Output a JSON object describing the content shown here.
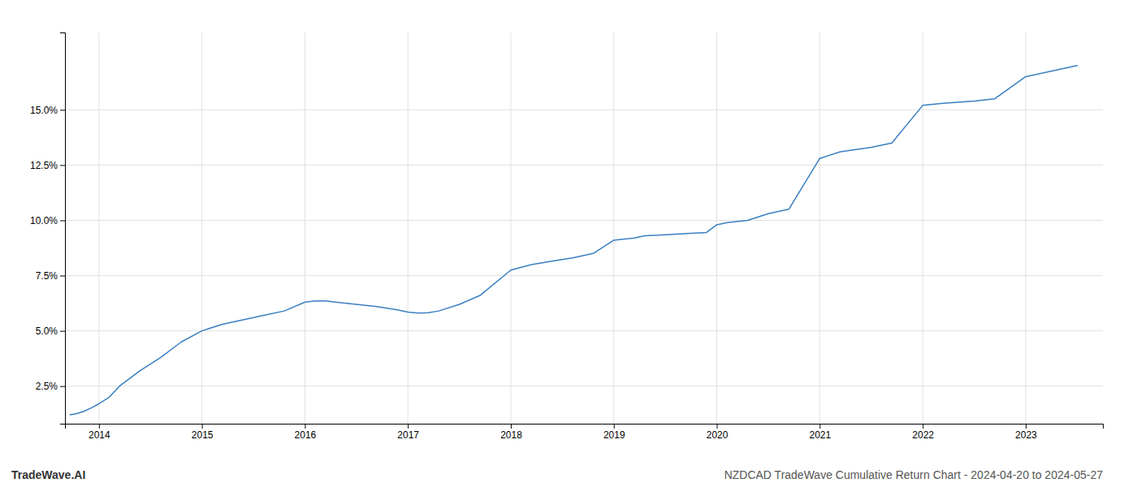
{
  "chart_data": {
    "type": "line",
    "title": "NZDCAD TradeWave Cumulative Return Chart - 2024-04-20 to 2024-05-27",
    "annotations": [
      "TradeWave.AI"
    ],
    "color": "#3a7fc1",
    "grid": true,
    "x": [
      2013.72,
      2013.78,
      2013.85,
      2013.92,
      2014.0,
      2014.1,
      2014.2,
      2014.4,
      2014.6,
      2014.8,
      2015.0,
      2015.1,
      2015.2,
      2015.4,
      2015.6,
      2015.8,
      2016.0,
      2016.1,
      2016.2,
      2016.3,
      2016.5,
      2016.7,
      2016.9,
      2017.0,
      2017.1,
      2017.2,
      2017.3,
      2017.5,
      2017.7,
      2018.0,
      2018.2,
      2018.4,
      2018.6,
      2018.8,
      2019.0,
      2019.2,
      2019.3,
      2019.5,
      2019.7,
      2019.9,
      2020.0,
      2020.1,
      2020.3,
      2020.5,
      2020.7,
      2021.0,
      2021.2,
      2021.5,
      2021.7,
      2022.0,
      2022.2,
      2022.5,
      2022.7,
      2023.0,
      2023.3,
      2023.5
    ],
    "values": [
      1.2,
      1.25,
      1.35,
      1.5,
      1.7,
      2.0,
      2.5,
      3.2,
      3.8,
      4.5,
      5.0,
      5.15,
      5.3,
      5.5,
      5.7,
      5.9,
      6.3,
      6.35,
      6.35,
      6.3,
      6.2,
      6.1,
      5.95,
      5.85,
      5.8,
      5.82,
      5.9,
      6.2,
      6.6,
      7.75,
      8.0,
      8.15,
      8.3,
      8.5,
      9.1,
      9.2,
      9.3,
      9.35,
      9.4,
      9.45,
      9.8,
      9.9,
      10.0,
      10.3,
      10.5,
      12.8,
      13.1,
      13.3,
      13.5,
      15.2,
      15.3,
      15.4,
      15.5,
      16.5,
      16.8,
      17.0
    ],
    "xlim": [
      2013.67,
      2023.75
    ],
    "ylim": [
      0.8,
      18.5
    ],
    "xticks": [
      2014,
      2015,
      2016,
      2017,
      2018,
      2019,
      2020,
      2021,
      2022,
      2023
    ],
    "yticks": [
      {
        "value": 2.5,
        "label": "2.5%"
      },
      {
        "value": 5.0,
        "label": "5.0%"
      },
      {
        "value": 7.5,
        "label": "7.5%"
      },
      {
        "value": 10.0,
        "label": "10.0%"
      },
      {
        "value": 12.5,
        "label": "12.5%"
      },
      {
        "value": 15.0,
        "label": "15.0%"
      }
    ]
  }
}
